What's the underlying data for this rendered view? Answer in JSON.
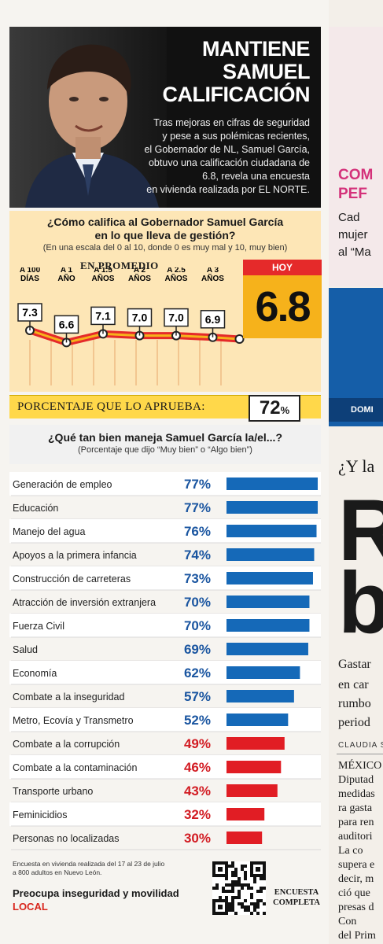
{
  "header": {
    "title_lines": [
      "MANTIENE",
      "SAMUEL",
      "CALIFICACIÓN"
    ],
    "description_lines": [
      "Tras mejoras en cifras de seguridad",
      "y pese a sus polémicas recientes,",
      "el Gobernador de NL, Samuel García,",
      "obtuvo una calificación ciudadana de",
      "6.8, revela una encuesta",
      "en vivienda realizada por EL NORTE."
    ]
  },
  "rating_question": {
    "title_line1": "¿Cómo califica al Gobernador Samuel García",
    "title_line2": "en lo que lleva de gestión?",
    "subtitle": "(En una escala del 0 al 10, donde 0 es muy mal y 10, muy bien)",
    "promedio_label": "EN PROMEDIO",
    "hoy_label": "HOY",
    "hoy_value": "6.8"
  },
  "approval": {
    "label": "PORCENTAJE QUE LO APRUEBA:",
    "value": "72",
    "unit": "%"
  },
  "issues_question": {
    "title": "¿Qué tan bien maneja Samuel García la/el...?",
    "subtitle": "(Porcentaje que dijo “Muy bien” o “Algo bien”)"
  },
  "chart_data": [
    {
      "type": "line",
      "title": "¿Cómo califica al Gobernador Samuel García en lo que lleva de gestión?",
      "x": [
        [
          "A 100",
          "DÍAS"
        ],
        [
          "A 1",
          "AÑO"
        ],
        [
          "A 1.5",
          "AÑOS"
        ],
        [
          "A 2",
          "AÑOS"
        ],
        [
          "A 2.5",
          "AÑOS"
        ],
        [
          "A 3",
          "AÑOS"
        ],
        [
          "HOY"
        ]
      ],
      "values": [
        7.3,
        6.6,
        7.1,
        7.0,
        7.0,
        6.9,
        6.8
      ],
      "value_labels": [
        "7.3",
        "6.6",
        "7.1",
        "7.0",
        "7.0",
        "6.9",
        "6.8"
      ],
      "line_colors": [
        "#e52a2a",
        "#f6b21b"
      ]
    },
    {
      "type": "bar",
      "orientation": "horizontal",
      "categories": [
        "Generación de empleo",
        "Educación",
        "Manejo del agua",
        "Apoyos a la primera infancia",
        "Construcción de carreteras",
        "Atracción de inversión extranjera",
        "Fuerza Civil",
        "Salud",
        "Economía",
        "Combate a la inseguridad",
        "Metro, Ecovía y Transmetro",
        "Combate a la corrupción",
        "Combate a la contaminación",
        "Transporte urbano",
        "Feminicidios",
        "Personas no localizadas"
      ],
      "values": [
        77,
        77,
        76,
        74,
        73,
        70,
        70,
        69,
        62,
        57,
        52,
        49,
        46,
        43,
        32,
        30
      ],
      "value_labels": [
        "77%",
        "77%",
        "76%",
        "74%",
        "73%",
        "70%",
        "70%",
        "69%",
        "62%",
        "57%",
        "52%",
        "49%",
        "46%",
        "43%",
        "32%",
        "30%"
      ],
      "colors": {
        "above_50": "#1569b8",
        "below_50": "#e11d24"
      },
      "xlim": [
        0,
        77
      ]
    }
  ],
  "footer": {
    "note_line1": "Encuesta en vivienda realizada del 17 al 23 de julio",
    "note_line2": "a 800 adultos en Nuevo León.",
    "headline": "Preocupa inseguridad y movilidad",
    "section": "LOCAL",
    "encuesta_line1": "ENCUESTA",
    "encuesta_line2": "COMPLETA"
  },
  "adjacent_page": {
    "headline_line1": "COM",
    "headline_line2": "PEF",
    "body_lines": [
      "Cad",
      "mujer",
      "al “Ma"
    ],
    "blue_banner": "DOMI",
    "article_kicker": "¿Y la",
    "article_big_1": "R",
    "article_big_2": "b",
    "article_deck": [
      "Gastar",
      "en car",
      "rumbo",
      "period"
    ],
    "byline": "CLAUDIA S",
    "article_body": [
      "MÉXICO",
      "Diputad",
      "medidas",
      "ra gasta",
      "para ren",
      "auditori",
      "La co",
      "supera e",
      "decir, m",
      "ció que",
      "presas d",
      "Con",
      "del Prim"
    ]
  }
}
